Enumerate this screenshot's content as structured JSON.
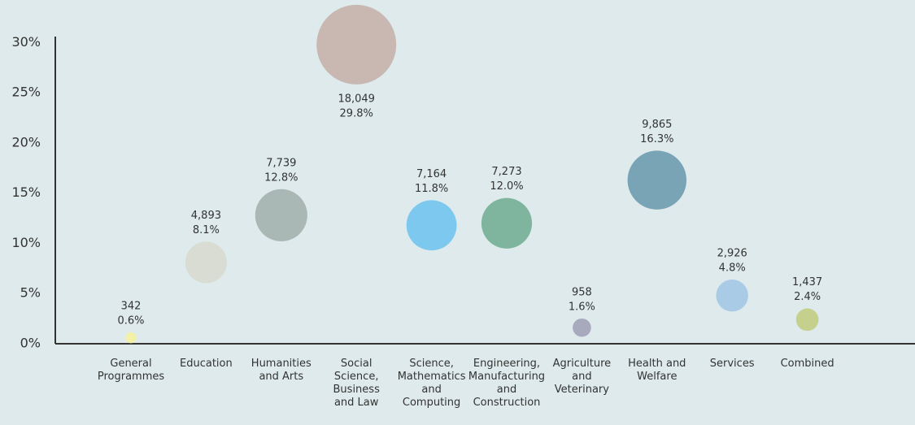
{
  "chart_data": {
    "type": "bubble",
    "categories": [
      "General\nProgrammes",
      "Education",
      "Humanities\nand Arts",
      "Social\nScience,\nBusiness\nand Law",
      "Science,\nMathematics\nand\nComputing",
      "Engineering,\nManufacturing\nand\nConstruction",
      "Agriculture\nand\nVeterinary",
      "Health and\nWelfare",
      "Services",
      "Combined"
    ],
    "values": [
      0.6,
      8.1,
      12.8,
      29.8,
      11.8,
      12.0,
      1.6,
      16.3,
      4.8,
      2.4
    ],
    "value_labels": [
      "0.6%",
      "8.1%",
      "12.8%",
      "29.8%",
      "11.8%",
      "12.0%",
      "1.6%",
      "16.3%",
      "4.8%",
      "2.4%"
    ],
    "sizes": [
      342,
      4893,
      7739,
      18049,
      7164,
      7273,
      958,
      9865,
      2926,
      1437
    ],
    "size_labels": [
      "342",
      "4,893",
      "7,739",
      "18,049",
      "7,164",
      "7,273",
      "958",
      "9,865",
      "2,926",
      "1,437"
    ],
    "colors": [
      "#f3f0a8",
      "#d8dcd3",
      "#a9b8b5",
      "#c9b8b2",
      "#7dc8ef",
      "#7fb59e",
      "#a8a9bd",
      "#78a4b5",
      "#a9cbe6",
      "#c4d08c"
    ],
    "ylim": [
      0,
      30.6
    ],
    "yticks": [
      {
        "value": 0,
        "label": "0%"
      },
      {
        "value": 5,
        "label": "5%"
      },
      {
        "value": 10,
        "label": "10%"
      },
      {
        "value": 15,
        "label": "15%"
      },
      {
        "value": 20,
        "label": "20%"
      },
      {
        "value": 25,
        "label": "25%"
      },
      {
        "value": 30,
        "label": "30%"
      }
    ]
  }
}
